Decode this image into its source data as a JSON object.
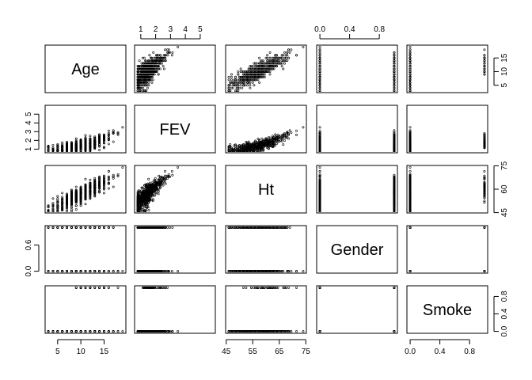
{
  "chart_data": {
    "type": "scatter",
    "kind": "pairs-scatterplot-matrix",
    "variables": [
      "Age",
      "FEV",
      "Ht",
      "Gender",
      "Smoke"
    ],
    "n_points": 654,
    "ranges": {
      "Age": [
        3,
        19
      ],
      "FEV": [
        0.8,
        5.8
      ],
      "Ht": [
        46,
        74
      ],
      "Gender": [
        0,
        1
      ],
      "Smoke": [
        0,
        1
      ]
    },
    "ticks": {
      "Age": [
        "5",
        "10",
        "15"
      ],
      "FEV": [
        "1",
        "2",
        "3",
        "4",
        "5"
      ],
      "Ht": [
        "45",
        "55",
        "65",
        "75"
      ],
      "Gender": [
        "0.0",
        "0.4",
        "0.8"
      ],
      "Smoke": [
        "0.0",
        "0.4",
        "0.8"
      ]
    },
    "axis_ticks": {
      "top": [
        null,
        {
          "var": "FEV",
          "labels": [
            "1",
            "2",
            "3",
            "4",
            "5"
          ]
        },
        null,
        {
          "var": "Gender",
          "labels": [
            "0.0",
            "0.4",
            "0.8"
          ]
        },
        null
      ],
      "bottom": [
        {
          "var": "Age",
          "labels": [
            "5",
            "10",
            "15"
          ]
        },
        null,
        {
          "var": "Ht",
          "labels": [
            "45",
            "55",
            "65",
            "75"
          ]
        },
        null,
        {
          "var": "Smoke",
          "labels": [
            "0.0",
            "0.4",
            "0.8"
          ]
        }
      ],
      "left": [
        null,
        {
          "var": "FEV",
          "labels": [
            "1",
            "2",
            "3",
            "4",
            "5"
          ]
        },
        null,
        {
          "var": "Gender",
          "labels": [
            "0.0",
            "0.6"
          ]
        },
        null
      ],
      "right": [
        {
          "var": "Age",
          "labels": [
            "5",
            "10",
            "15"
          ]
        },
        null,
        {
          "var": "Ht",
          "labels": [
            "45",
            "60",
            "75"
          ]
        },
        null,
        {
          "var": "Smoke",
          "labels": [
            "0.0",
            "0.4",
            "0.8"
          ]
        }
      ]
    },
    "relationships": {
      "FEV~Age": "positive increasing",
      "Ht~Age": "positive increasing",
      "FEV~Ht": "strong positive curvilinear",
      "Gender": "binary 0/1",
      "Smoke": "binary 0/1, mostly 0"
    },
    "grid": false,
    "legend": "none"
  }
}
